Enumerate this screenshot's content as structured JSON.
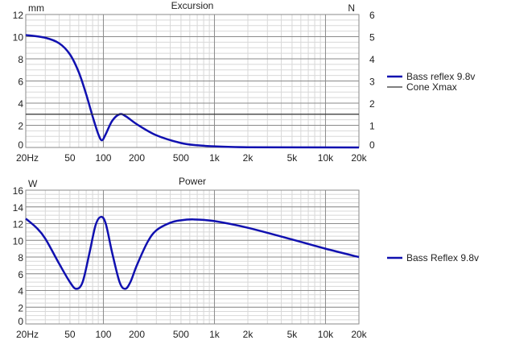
{
  "chart_data": [
    {
      "type": "line",
      "title": "Excursion",
      "ylabel": "mm",
      "y2label": "N",
      "ylim": [
        0,
        12
      ],
      "y2lim": [
        0,
        6
      ],
      "yticks": [
        "0",
        "2",
        "4",
        "6",
        "8",
        "10",
        "12"
      ],
      "y2ticks": [
        "0",
        "1",
        "2",
        "3",
        "4",
        "5",
        "6"
      ],
      "xlim": [
        20,
        20000
      ],
      "xscale": "log",
      "xticks": [
        {
          "v": 20,
          "l": "20Hz"
        },
        {
          "v": 50,
          "l": "50"
        },
        {
          "v": 100,
          "l": "100"
        },
        {
          "v": 200,
          "l": "200"
        },
        {
          "v": 500,
          "l": "500"
        },
        {
          "v": 1000,
          "l": "1k"
        },
        {
          "v": 2000,
          "l": "2k"
        },
        {
          "v": 5000,
          "l": "5k"
        },
        {
          "v": 10000,
          "l": "10k"
        },
        {
          "v": 20000,
          "l": "20k"
        }
      ],
      "series": [
        {
          "name": "Bass reflex 9.8v",
          "color": "#1010b0",
          "x": [
            20,
            30,
            40,
            50,
            60,
            70,
            80,
            90,
            97,
            105,
            120,
            140,
            160,
            200,
            300,
            500,
            700,
            1000,
            2000,
            20000
          ],
          "y": [
            10.15,
            9.9,
            9.4,
            8.4,
            6.8,
            4.8,
            2.8,
            1.2,
            0.65,
            1.2,
            2.4,
            3.0,
            2.8,
            2.1,
            1.1,
            0.4,
            0.2,
            0.1,
            0.02,
            0
          ]
        },
        {
          "name": "Cone Xmax",
          "color": "#333333",
          "x": [
            20,
            20000
          ],
          "y": [
            3,
            3
          ]
        }
      ],
      "legend": "right"
    },
    {
      "type": "line",
      "title": "Power",
      "ylabel": "W",
      "ylim": [
        0,
        16
      ],
      "yticks": [
        "0",
        "2",
        "4",
        "6",
        "8",
        "10",
        "12",
        "14",
        "16"
      ],
      "xlim": [
        20,
        20000
      ],
      "xscale": "log",
      "xticks": [
        {
          "v": 20,
          "l": "20Hz"
        },
        {
          "v": 50,
          "l": "50"
        },
        {
          "v": 100,
          "l": "100"
        },
        {
          "v": 200,
          "l": "200"
        },
        {
          "v": 500,
          "l": "500"
        },
        {
          "v": 1000,
          "l": "1k"
        },
        {
          "v": 2000,
          "l": "2k"
        },
        {
          "v": 5000,
          "l": "5k"
        },
        {
          "v": 10000,
          "l": "10k"
        },
        {
          "v": 20000,
          "l": "20k"
        }
      ],
      "series": [
        {
          "name": "Bass Reflex 9.8v",
          "color": "#1010b0",
          "x": [
            20,
            25,
            30,
            40,
            50,
            57,
            65,
            75,
            85,
            95,
            105,
            120,
            140,
            157,
            175,
            200,
            250,
            300,
            400,
            500,
            650,
            1000,
            2000,
            5000,
            10000,
            20000
          ],
          "y": [
            12.6,
            11.5,
            10.2,
            7.2,
            5.0,
            4.2,
            5.0,
            8.5,
            11.8,
            12.8,
            12.0,
            8.5,
            5.0,
            4.2,
            5.0,
            7.0,
            9.8,
            11.2,
            12.1,
            12.4,
            12.5,
            12.3,
            11.5,
            10.1,
            9.0,
            8.0
          ]
        }
      ],
      "legend": "right"
    }
  ]
}
